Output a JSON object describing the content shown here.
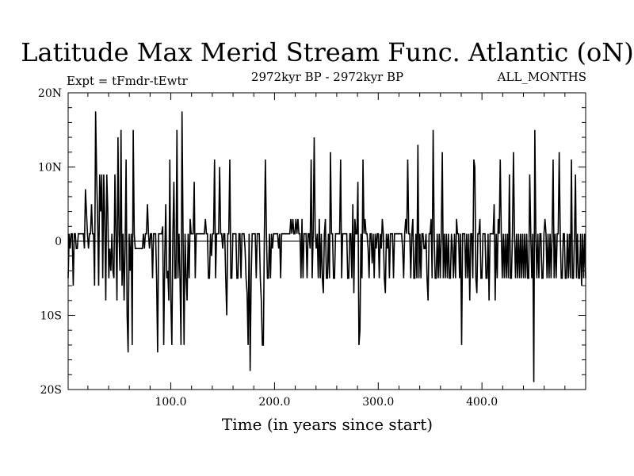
{
  "chart_data": {
    "type": "line",
    "title": "Latitude Max Merid Stream Func. Atlantic (oN)",
    "subtitle_left": "Expt = tFmdr-tEwtr",
    "subtitle_center": "2972kyr BP - 2972kyr BP",
    "subtitle_right": "ALL_MONTHS",
    "xlabel": "Time (in years since start)",
    "ylabel": "",
    "xlim": [
      1,
      500
    ],
    "ylim": [
      -20,
      20
    ],
    "x_ticks": [
      100,
      200,
      300,
      400
    ],
    "x_tick_labels": [
      "100.0",
      "200.0",
      "300.0",
      "400.0"
    ],
    "y_ticks": [
      20,
      10,
      0,
      -10,
      -20
    ],
    "y_tick_labels": [
      "20N",
      "10N",
      "0",
      "10S",
      "20S"
    ],
    "zero_line": true,
    "grid": false,
    "line_color": "#000000",
    "series": [
      {
        "values": [
          -5,
          1,
          -1,
          1,
          1,
          -6,
          1,
          1,
          -1,
          -1,
          1,
          1,
          1,
          1,
          1,
          1,
          -1,
          7,
          4,
          1,
          -1,
          1,
          1,
          5,
          1,
          1,
          -6,
          17.5,
          9,
          3,
          -6,
          9,
          4,
          9,
          -5,
          9,
          3,
          -8,
          9,
          4,
          -5,
          -1,
          -4,
          1,
          -4,
          -5,
          9,
          1,
          -8,
          14,
          1,
          -4,
          15,
          -6,
          1,
          -8,
          -1,
          11,
          -10,
          -15,
          1,
          -4,
          1,
          -14,
          15,
          1,
          -1,
          -1,
          -1,
          -1,
          -1,
          -1,
          -1,
          -1,
          1,
          -1,
          1,
          1,
          5,
          1,
          -1,
          1,
          1,
          -5,
          1,
          1,
          1,
          -5,
          -15,
          1,
          1,
          1,
          1,
          2,
          -14,
          -2,
          5,
          -5,
          -4,
          -8,
          11,
          -8,
          -14,
          1,
          8,
          -5,
          -5,
          15,
          -5,
          1,
          -5,
          -14,
          17.5,
          1,
          -14,
          1,
          -5,
          -8,
          1,
          -5,
          3,
          1,
          1,
          1,
          8,
          -5,
          1,
          1,
          1,
          1,
          1,
          1,
          1,
          1,
          1,
          3,
          1,
          1,
          -5,
          -5,
          1,
          -2,
          1,
          1,
          11,
          -5,
          1,
          1,
          1,
          10,
          1,
          1,
          -1,
          1,
          1,
          -5,
          -10,
          1,
          1,
          11,
          -5,
          -5,
          1,
          1,
          1,
          1,
          -5,
          -5,
          1,
          1,
          -5,
          1,
          1,
          1,
          -1,
          -5,
          -7,
          -14,
          1,
          -17.5,
          -5,
          1,
          1,
          1,
          1,
          -5,
          1,
          1,
          1,
          -5,
          -8,
          -14,
          -14,
          1,
          11,
          1,
          -5,
          -5,
          1,
          -5,
          1,
          -1,
          1,
          1,
          1,
          1,
          1,
          -1,
          1,
          -5,
          1,
          1,
          1,
          1,
          1,
          1,
          1,
          1,
          1,
          3,
          1,
          3,
          1,
          1,
          3,
          1,
          3,
          1,
          1,
          -5,
          3,
          -5,
          1,
          1,
          1,
          -5,
          1,
          1,
          -1,
          11,
          -5,
          1,
          14,
          1,
          -1,
          1,
          -5,
          3,
          -5,
          1,
          -5,
          -7,
          1,
          3,
          -5,
          -5,
          1,
          -5,
          12,
          1,
          1,
          -5,
          -5,
          1,
          1,
          1,
          1,
          1,
          11,
          -5,
          1,
          1,
          1,
          1,
          1,
          -5,
          -5,
          1,
          1,
          -5,
          5,
          -7,
          3,
          1,
          1,
          8,
          -14,
          -12,
          1,
          -5,
          11,
          1,
          3,
          1,
          1,
          -1,
          -5,
          1,
          1,
          -3,
          1,
          -5,
          1,
          -1,
          1,
          1,
          -5,
          1,
          -1,
          3,
          1,
          -5,
          -7,
          1,
          -1,
          1,
          -5,
          1,
          1,
          1,
          -5,
          1,
          1,
          1,
          1,
          1,
          1,
          1,
          1,
          -1,
          -5,
          1,
          3,
          1,
          11,
          1,
          1,
          -5,
          1,
          3,
          -5,
          -5,
          1,
          -5,
          13,
          -5,
          1,
          -5,
          1,
          1,
          -1,
          -1,
          1,
          -5,
          -8,
          1,
          1,
          3,
          -5,
          15,
          1,
          -5,
          -5,
          1,
          -5,
          1,
          -5,
          1,
          12,
          -5,
          1,
          -5,
          1,
          -5,
          1,
          -5,
          -5,
          1,
          -1,
          -5,
          1,
          -5,
          3,
          1,
          1,
          -5,
          1,
          -14,
          1,
          1,
          1,
          -5,
          1,
          -5,
          1,
          -8,
          1,
          1,
          -5,
          11,
          10,
          -5,
          -7,
          1,
          1,
          3,
          -5,
          -5,
          1,
          1,
          1,
          -5,
          -5,
          1,
          -8,
          1,
          1,
          1,
          1,
          5,
          -8,
          1,
          -5,
          3,
          1,
          11,
          1,
          -5,
          1,
          -5,
          1,
          -5,
          1,
          -5,
          9,
          -5,
          -5,
          1,
          12,
          1,
          -5,
          1,
          -5,
          1,
          -5,
          1,
          -5,
          1,
          -5,
          1,
          -5,
          1,
          -5,
          -5,
          9,
          1,
          -5,
          1,
          -19,
          15,
          1,
          -5,
          1,
          -5,
          1,
          1,
          -5,
          -5,
          1,
          3,
          1,
          -5,
          1,
          -5,
          1,
          -5,
          1,
          11,
          -5,
          1,
          -5,
          1,
          1,
          12,
          1,
          -5,
          -5,
          1,
          1,
          -5,
          -5,
          1,
          -5,
          1,
          -5,
          11,
          -5,
          -5,
          1,
          9,
          -5,
          1,
          -5,
          -5,
          1,
          -6,
          1,
          -5,
          1,
          -5
        ]
      }
    ]
  }
}
